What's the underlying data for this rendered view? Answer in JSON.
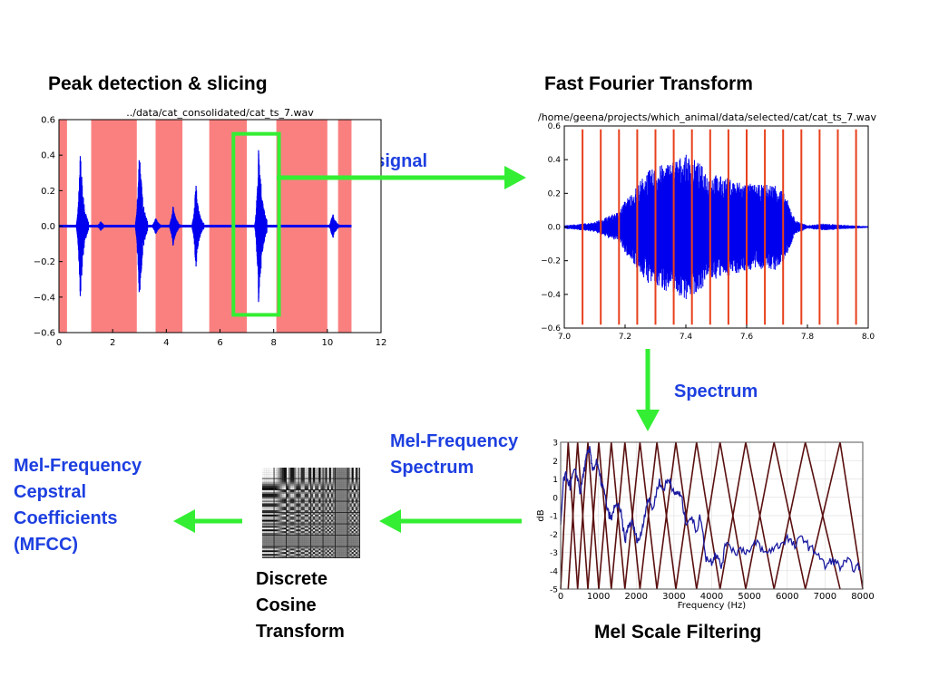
{
  "headings": {
    "peak": "Peak detection & slicing",
    "fft": "Fast Fourier Transform",
    "mel_filter": "Mel Scale Filtering",
    "dct": [
      "Discrete",
      "Cosine",
      "Transform"
    ]
  },
  "labels": {
    "audio_signal": "Audio signal",
    "spectrum": "Spectrum",
    "mel_spectrum": [
      "Mel-Frequency",
      "Spectrum"
    ],
    "mfcc": [
      "Mel-Frequency",
      "Cepstral",
      "Coefficients",
      "(MFCC)"
    ]
  },
  "colors": {
    "arrow": "#33ee33",
    "label_blue": "#1d3fe0",
    "wave": "#0000ee",
    "slice_band": "#fa8080",
    "slice_line": "#e8401c",
    "filter": "#5a0f0f",
    "spectrum_line": "#1a1aa0"
  },
  "chart_data": [
    {
      "type": "line",
      "title": "../data/cat_consolidated/cat_ts_7.wav",
      "xlim": [
        0,
        12
      ],
      "ylim": [
        -0.6,
        0.6
      ],
      "x_ticks": [
        "0",
        "2",
        "4",
        "6",
        "8",
        "10",
        "12"
      ],
      "y_ticks": [
        "0.6",
        "0.4",
        "0.2",
        "0.0",
        "−0.2",
        "−0.4",
        "−0.6"
      ],
      "shaded_regions": [
        [
          0,
          0.3
        ],
        [
          1.2,
          2.9
        ],
        [
          3.6,
          4.6
        ],
        [
          5.6,
          7.0
        ],
        [
          8.1,
          10.0
        ],
        [
          10.4,
          10.9
        ]
      ],
      "peaks": [
        {
          "x": 0.8,
          "amp": 0.44
        },
        {
          "x": 1.55,
          "amp": 0.03
        },
        {
          "x": 3.0,
          "amp": 0.48
        },
        {
          "x": 3.6,
          "amp": 0.05
        },
        {
          "x": 4.25,
          "amp": 0.12
        },
        {
          "x": 5.1,
          "amp": 0.25
        },
        {
          "x": 7.45,
          "amp": 0.52
        },
        {
          "x": 10.2,
          "amp": 0.08
        }
      ],
      "highlight_box": [
        6.5,
        8.2
      ],
      "baseline_end": 10.9
    },
    {
      "type": "line",
      "title": "/home/geena/projects/which_animal/data/selected/cat/cat_ts_7.wav",
      "xlim": [
        7.0,
        8.0
      ],
      "ylim": [
        -0.6,
        0.6
      ],
      "x_ticks": [
        "7.0",
        "7.2",
        "7.4",
        "7.6",
        "7.8",
        "8.0"
      ],
      "y_ticks": [
        "0.6",
        "0.4",
        "0.2",
        "0.0",
        "−0.2",
        "−0.4",
        "−0.6"
      ],
      "envelope": [
        [
          7.0,
          0.01
        ],
        [
          7.06,
          0.02
        ],
        [
          7.1,
          0.03
        ],
        [
          7.15,
          0.07
        ],
        [
          7.18,
          0.09
        ],
        [
          7.2,
          0.16
        ],
        [
          7.23,
          0.22
        ],
        [
          7.27,
          0.33
        ],
        [
          7.32,
          0.37
        ],
        [
          7.36,
          0.4
        ],
        [
          7.4,
          0.43
        ],
        [
          7.44,
          0.39
        ],
        [
          7.47,
          0.33
        ],
        [
          7.52,
          0.3
        ],
        [
          7.58,
          0.27
        ],
        [
          7.64,
          0.25
        ],
        [
          7.7,
          0.26
        ],
        [
          7.73,
          0.18
        ],
        [
          7.76,
          0.04
        ],
        [
          7.8,
          0.01
        ],
        [
          7.85,
          0.02
        ],
        [
          8.0,
          0.005
        ]
      ],
      "slice_lines": [
        7.06,
        7.12,
        7.18,
        7.24,
        7.3,
        7.36,
        7.42,
        7.48,
        7.54,
        7.6,
        7.66,
        7.72,
        7.78,
        7.84,
        7.9,
        7.96
      ]
    },
    {
      "type": "line",
      "xlabel": "Frequency (Hz)",
      "ylabel": "dB",
      "xlim": [
        0,
        8000
      ],
      "ylim": [
        -5,
        3
      ],
      "x_ticks": [
        "0",
        "1000",
        "2000",
        "3000",
        "4000",
        "5000",
        "6000",
        "7000",
        "8000"
      ],
      "y_ticks": [
        "3",
        "2",
        "1",
        "0",
        "-1",
        "-2",
        "-3",
        "-4",
        "-5"
      ],
      "filter_centers": [
        0,
        200,
        450,
        720,
        1010,
        1340,
        1700,
        2100,
        2550,
        3050,
        3600,
        4220,
        4900,
        5650,
        6480,
        7400,
        8000
      ],
      "spectrum": [
        [
          0,
          -1.5
        ],
        [
          80,
          1.0
        ],
        [
          150,
          1.2
        ],
        [
          250,
          0.6
        ],
        [
          350,
          1.4
        ],
        [
          450,
          1.1
        ],
        [
          520,
          0.2
        ],
        [
          600,
          1.3
        ],
        [
          700,
          2.3
        ],
        [
          780,
          2.6
        ],
        [
          850,
          1.5
        ],
        [
          950,
          1.9
        ],
        [
          1050,
          1.0
        ],
        [
          1150,
          0.3
        ],
        [
          1250,
          -0.8
        ],
        [
          1350,
          -1.2
        ],
        [
          1450,
          -0.3
        ],
        [
          1600,
          -0.9
        ],
        [
          1700,
          -2.4
        ],
        [
          1800,
          -1.5
        ],
        [
          1900,
          -1.4
        ],
        [
          2000,
          -2.2
        ],
        [
          2100,
          -2.3
        ],
        [
          2200,
          -1.2
        ],
        [
          2300,
          -0.1
        ],
        [
          2450,
          -0.6
        ],
        [
          2600,
          0.9
        ],
        [
          2700,
          0.4
        ],
        [
          2800,
          0.8
        ],
        [
          2900,
          1.0
        ],
        [
          3000,
          0.1
        ],
        [
          3100,
          0.3
        ],
        [
          3200,
          0.0
        ],
        [
          3300,
          -1.3
        ],
        [
          3450,
          -1.1
        ],
        [
          3600,
          -1.8
        ],
        [
          3700,
          -1.0
        ],
        [
          3850,
          -3.3
        ],
        [
          4000,
          -3.5
        ],
        [
          4100,
          -3.0
        ],
        [
          4250,
          -3.8
        ],
        [
          4400,
          -2.3
        ],
        [
          4600,
          -3.0
        ],
        [
          4800,
          -2.8
        ],
        [
          5000,
          -3.0
        ],
        [
          5200,
          -2.4
        ],
        [
          5400,
          -3.1
        ],
        [
          5600,
          -2.8
        ],
        [
          5800,
          -2.6
        ],
        [
          6000,
          -2.2
        ],
        [
          6200,
          -2.7
        ],
        [
          6400,
          -2.1
        ],
        [
          6600,
          -2.8
        ],
        [
          6800,
          -3.0
        ],
        [
          7000,
          -3.8
        ],
        [
          7200,
          -3.4
        ],
        [
          7400,
          -3.8
        ],
        [
          7600,
          -3.5
        ],
        [
          7800,
          -3.9
        ],
        [
          7950,
          -3.7
        ]
      ]
    }
  ]
}
